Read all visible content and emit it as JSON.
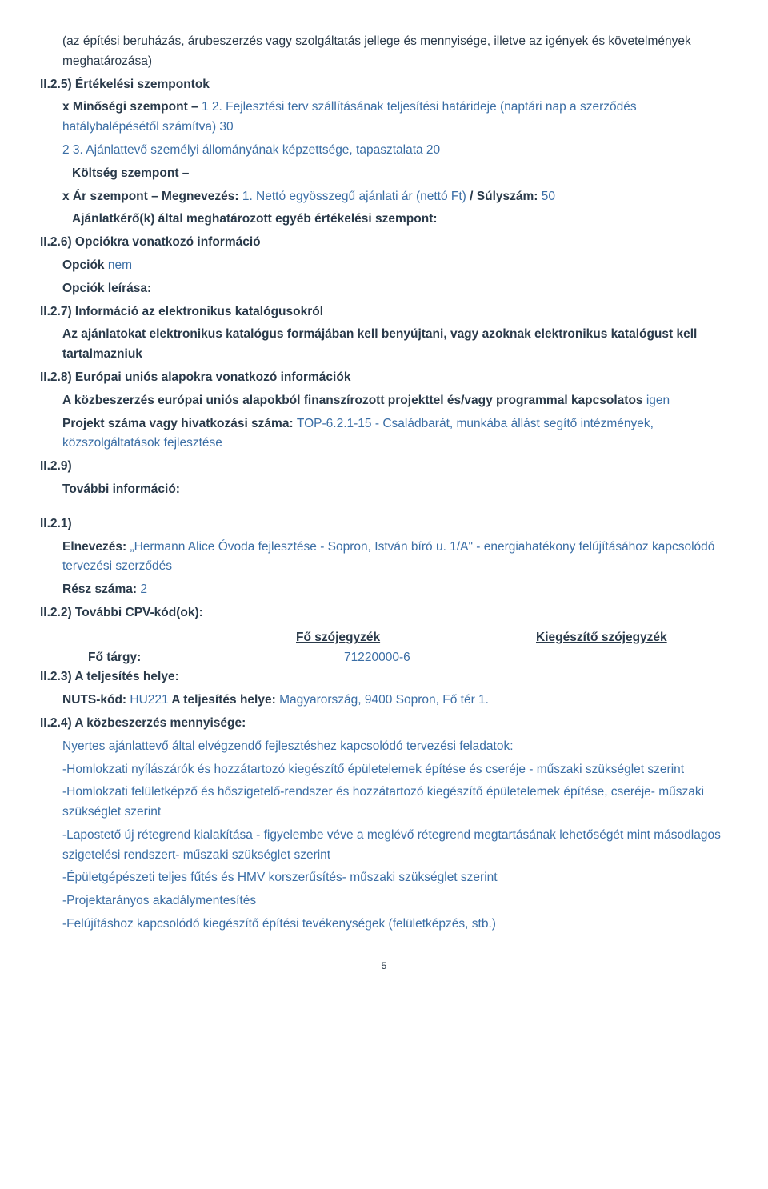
{
  "intro1": "(az építési beruházás, árubeszerzés vagy szolgáltatás jellege és mennyisége, illetve az igények és követelmények meghatározása)",
  "s25_label": "II.2.5) Értékelési szempontok",
  "s25_quality_line_prefix": "x Minőségi szempont – ",
  "s25_quality_line_value": "1 2. Fejlesztési terv szállításának teljesítési határideje (naptári nap a szerződés hatálybalépésétől számítva) 30",
  "s25_quality_line2_value": "2 3. Ajánlattevő személyi állományának képzettsége, tapasztalata 20",
  "s25_cost_label": "Költség szempont –",
  "s25_price_prefix": "x Ár szempont – Megnevezés: ",
  "s25_price_value": "1. Nettó egyösszegű ajánlati ár (nettó Ft)",
  "s25_weight_label": " / Súlyszám: ",
  "s25_weight_value": "50",
  "s25_other": "Ajánlatkérő(k) által meghatározott egyéb értékelési szempont:",
  "s26_label": "II.2.6) Opciókra vonatkozó információ",
  "s26_opt_label": "Opciók ",
  "s26_opt_value": "nem",
  "s26_desc": "Opciók leírása:",
  "s27_label": "II.2.7) Információ az elektronikus katalógusokról",
  "s27_text": "Az ajánlatokat elektronikus katalógus formájában kell benyújtani, vagy azoknak elektronikus katalógust kell tartalmazniuk",
  "s28_label": "II.2.8) Európai uniós alapokra vonatkozó információk",
  "s28_text1": "A közbeszerzés európai uniós alapokból finanszírozott projekttel és/vagy programmal kapcsolatos ",
  "s28_yes": "igen",
  "s28_proj_label": "Projekt száma vagy hivatkozási száma: ",
  "s28_proj_value": "TOP-6.2.1-15 - Családbarát, munkába állást segítő intézmények, közszolgáltatások fejlesztése",
  "s29_label": "II.2.9)",
  "s29_more": "További információ:",
  "s21_label": "II.2.1)",
  "s21_name_label": "Elnevezés: ",
  "s21_name_value": "„Hermann Alice Óvoda fejlesztése - Sopron, István bíró u. 1/A\" - energiahatékony felújításához kapcsolódó tervezési szerződés",
  "s21_part_label": "Rész száma: ",
  "s21_part_value": "2",
  "s22_label": "II.2.2) További CPV-kód(ok):",
  "cpv_head_main": "Fő szójegyzék",
  "cpv_head_supp": "Kiegészítő szójegyzék",
  "cpv_row_label": "Fő tárgy:",
  "cpv_row_value": "71220000-6",
  "s23_label": "II.2.3) A teljesítés helye:",
  "s23_nuts_label": "NUTS-kód: ",
  "s23_nuts_value": "HU221",
  "s23_place_label": " A teljesítés helye: ",
  "s23_place_value": "Magyarország, 9400 Sopron, Fő tér 1.",
  "s24_label": "II.2.4) A közbeszerzés mennyisége:",
  "s24_lines": [
    "Nyertes ajánlattevő által elvégzendő fejlesztéshez kapcsolódó tervezési feladatok:",
    "-Homlokzati nyílászárók és hozzátartozó kiegészítő épületelemek építése és cseréje - műszaki szükséglet szerint",
    "-Homlokzati felületképző és hőszigetelő-rendszer és hozzátartozó kiegészítő épületelemek építése, cseréje- műszaki szükséglet szerint",
    "-Lapostető új rétegrend kialakítása - figyelembe véve a meglévő rétegrend megtartásának lehetőségét mint másodlagos szigetelési rendszert- műszaki szükséglet szerint",
    "-Épületgépészeti teljes fűtés és HMV korszerűsítés- műszaki szükséglet szerint",
    "-Projektarányos akadálymentesítés",
    "-Felújításhoz kapcsolódó kiegészítő építési tevékenységek (felületképzés, stb.)"
  ],
  "page_num": "5"
}
